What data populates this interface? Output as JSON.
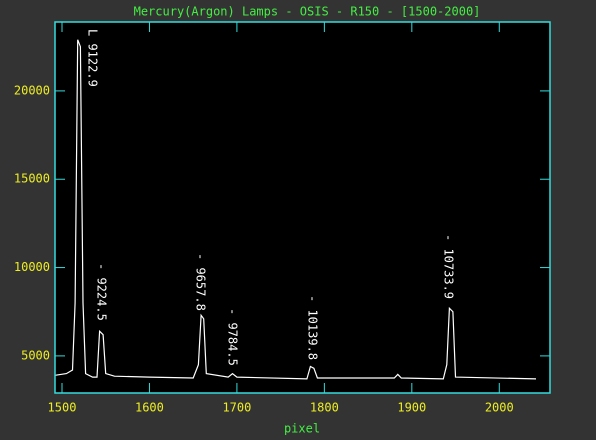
{
  "chart_data": {
    "type": "line",
    "title": "Mercury(Argon) Lamps - OSIS - R150 - [1500-2000]",
    "x_label": "pixel",
    "x": [
      1492,
      1505,
      1512,
      1515,
      1518,
      1521,
      1524,
      1527,
      1535,
      1540,
      1543,
      1547,
      1550,
      1560,
      1600,
      1650,
      1656,
      1659,
      1662,
      1665,
      1690,
      1695,
      1700,
      1780,
      1784,
      1788,
      1792,
      1880,
      1884,
      1888,
      1936,
      1940,
      1943,
      1947,
      1950,
      2042
    ],
    "values": [
      3900,
      4000,
      4200,
      8000,
      22900,
      22500,
      8000,
      4000,
      3800,
      3800,
      6400,
      6200,
      4000,
      3850,
      3800,
      3750,
      4500,
      7300,
      7100,
      4000,
      3800,
      4000,
      3800,
      3700,
      4400,
      4300,
      3750,
      3750,
      3950,
      3750,
      3700,
      4500,
      7700,
      7500,
      3800,
      3700
    ],
    "color": "#ffffff",
    "annotations": [
      "L 9122.9",
      "- 9224.5",
      "- 9657.8",
      "- 9784.5",
      "- 10139.8",
      "- 10733.9"
    ],
    "xlim": [
      1492,
      2058
    ],
    "ylim": [
      2900,
      23900
    ],
    "xticks": [
      1500,
      1600,
      1700,
      1800,
      1900,
      2000
    ],
    "yticks": [
      5000,
      10000,
      15000,
      20000
    ]
  }
}
